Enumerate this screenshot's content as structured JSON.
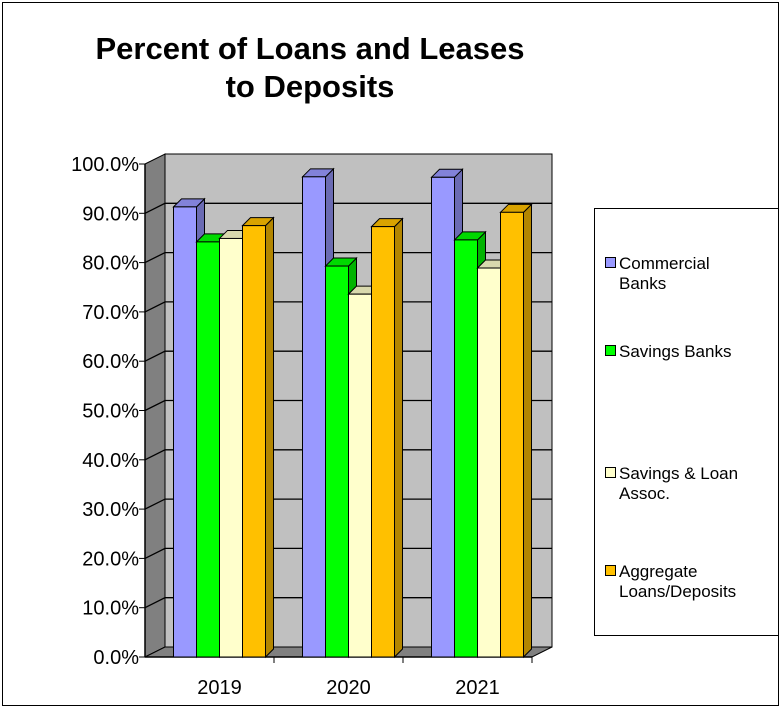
{
  "chart_data": {
    "type": "bar",
    "title": [
      "Percent of Loans and Leases",
      "to Deposits"
    ],
    "categories": [
      "2019",
      "2020",
      "2021"
    ],
    "series": [
      {
        "name": "Commercial Banks",
        "label_lines": [
          "Commercial",
          "Banks"
        ],
        "color": "#9999FF",
        "values": [
          91.3,
          97.4,
          97.3
        ]
      },
      {
        "name": "Savings Banks",
        "label_lines": [
          "Savings Banks"
        ],
        "color": "#00FF00",
        "values": [
          84.2,
          79.3,
          84.6
        ]
      },
      {
        "name": "Savings & Loan Assoc.",
        "label_lines": [
          "Savings & Loan",
          "Assoc."
        ],
        "color": "#FFFFCC",
        "values": [
          84.9,
          73.6,
          78.9
        ]
      },
      {
        "name": "Aggregate Loans/Deposits",
        "label_lines": [
          "Aggregate",
          "Loans/Deposits"
        ],
        "color": "#FFC000",
        "values": [
          87.5,
          87.3,
          90.2
        ]
      }
    ],
    "ylim": [
      0,
      100
    ],
    "yticks": [
      "0.0%",
      "10.0%",
      "20.0%",
      "30.0%",
      "40.0%",
      "50.0%",
      "60.0%",
      "70.0%",
      "80.0%",
      "90.0%",
      "100.0%"
    ],
    "xlabel": "",
    "ylabel": "",
    "grid": true,
    "legend_position": "right",
    "wall_color": "#C0C0C0",
    "floor_color": "#808080"
  }
}
